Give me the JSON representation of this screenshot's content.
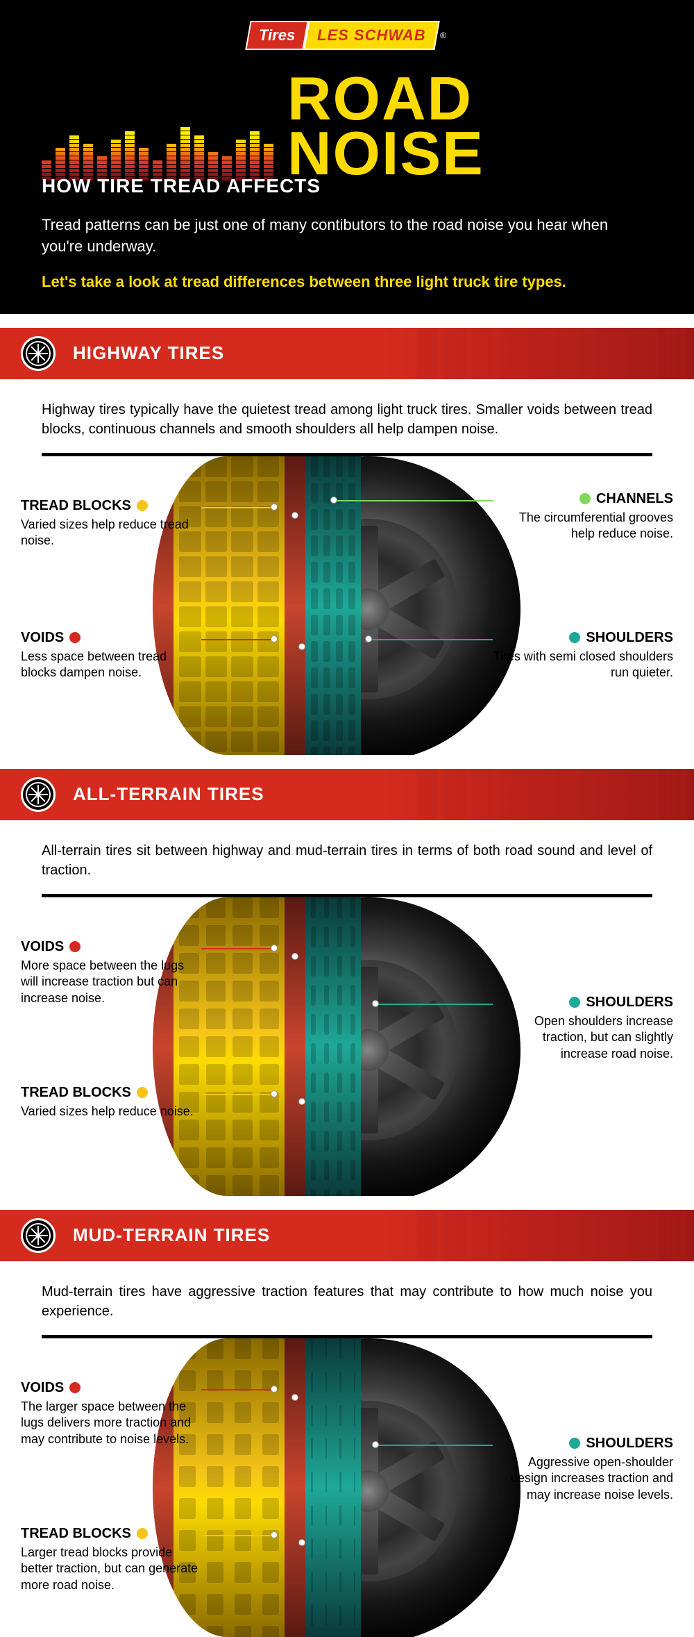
{
  "logo": {
    "tires": "Tires",
    "name": "LES SCHWAB"
  },
  "header": {
    "subtitle": "HOW TIRE TREAD AFFECTS",
    "title": "ROAD NOISE",
    "intro": "Tread patterns can be just one of many contibutors to the road noise you hear when you're underway.",
    "intro_yellow": "Let's take a look at tread differences between three light truck tire types."
  },
  "colors": {
    "brand_red": "#d52b1e",
    "brand_yellow": "#fddb00",
    "tread_yellow": "#f5c518",
    "tread_red": "#c8452e",
    "tread_teal": "#1fa898",
    "channel_green": "#7fd857",
    "black": "#000000",
    "white": "#ffffff"
  },
  "equalizer": {
    "bar_count": 17,
    "heights": [
      5,
      8,
      11,
      9,
      6,
      10,
      12,
      8,
      5,
      9,
      13,
      11,
      7,
      6,
      10,
      12,
      9
    ],
    "seg_colors": [
      "#7a0d0d",
      "#9a1212",
      "#b81818",
      "#d52b1e",
      "#e23a1a",
      "#e85518",
      "#ef7a14",
      "#f59b10",
      "#f8b80c",
      "#fbd308",
      "#fde506",
      "#fdf204",
      "#fdfb02"
    ]
  },
  "sections": [
    {
      "id": "highway",
      "title": "HIGHWAY TIRES",
      "desc": "Highway tires typically have the quietest tread among light truck tires. Smaller voids between tread blocks, continuous channels and smooth shoulders all help dampen noise.",
      "pattern_gap": 6,
      "callouts": {
        "left_top": {
          "label": "TREAD BLOCKS",
          "dot": "yellow",
          "text": "Varied sizes help reduce tread noise."
        },
        "left_bot": {
          "label": "VOIDS",
          "dot": "red",
          "text": "Less space between tread blocks dampen noise."
        },
        "right_top": {
          "label": "CHANNELS",
          "dot": "green",
          "text": "The circumferential grooves help reduce noise."
        },
        "right_bot": {
          "label": "SHOULDERS",
          "dot": "teal",
          "text": "Tires with semi closed shoulders run quieter."
        }
      }
    },
    {
      "id": "allterrain",
      "title": "ALL-TERRAIN TIRES",
      "desc": "All-terrain tires sit between highway and mud-terrain tires in terms of both road sound and level of traction.",
      "pattern_gap": 10,
      "callouts": {
        "left_top": {
          "label": "VOIDS",
          "dot": "red",
          "text": "More space between the lugs will increase traction but can increase noise."
        },
        "left_bot": {
          "label": "TREAD BLOCKS",
          "dot": "yellow",
          "text": "Varied sizes help reduce noise."
        },
        "right_mid": {
          "label": "SHOULDERS",
          "dot": "teal",
          "text": "Open shoulders increase traction, but can slightly increase road noise."
        }
      }
    },
    {
      "id": "mudterrain",
      "title": "MUD-TERRAIN TIRES",
      "desc": "Mud-terrain tires have aggressive traction features that may contribute to how much noise you experience.",
      "pattern_gap": 16,
      "callouts": {
        "left_top": {
          "label": "VOIDS",
          "dot": "red",
          "text": "The larger space between the lugs delivers more traction and may contribute to noise levels."
        },
        "left_bot": {
          "label": "TREAD BLOCKS",
          "dot": "yellow",
          "text": "Larger tread blocks provide better traction, but can generate more road noise."
        },
        "right_mid": {
          "label": "SHOULDERS",
          "dot": "teal",
          "text": "Aggressive open-shoulder design increases traction and may increase noise levels."
        }
      }
    }
  ]
}
